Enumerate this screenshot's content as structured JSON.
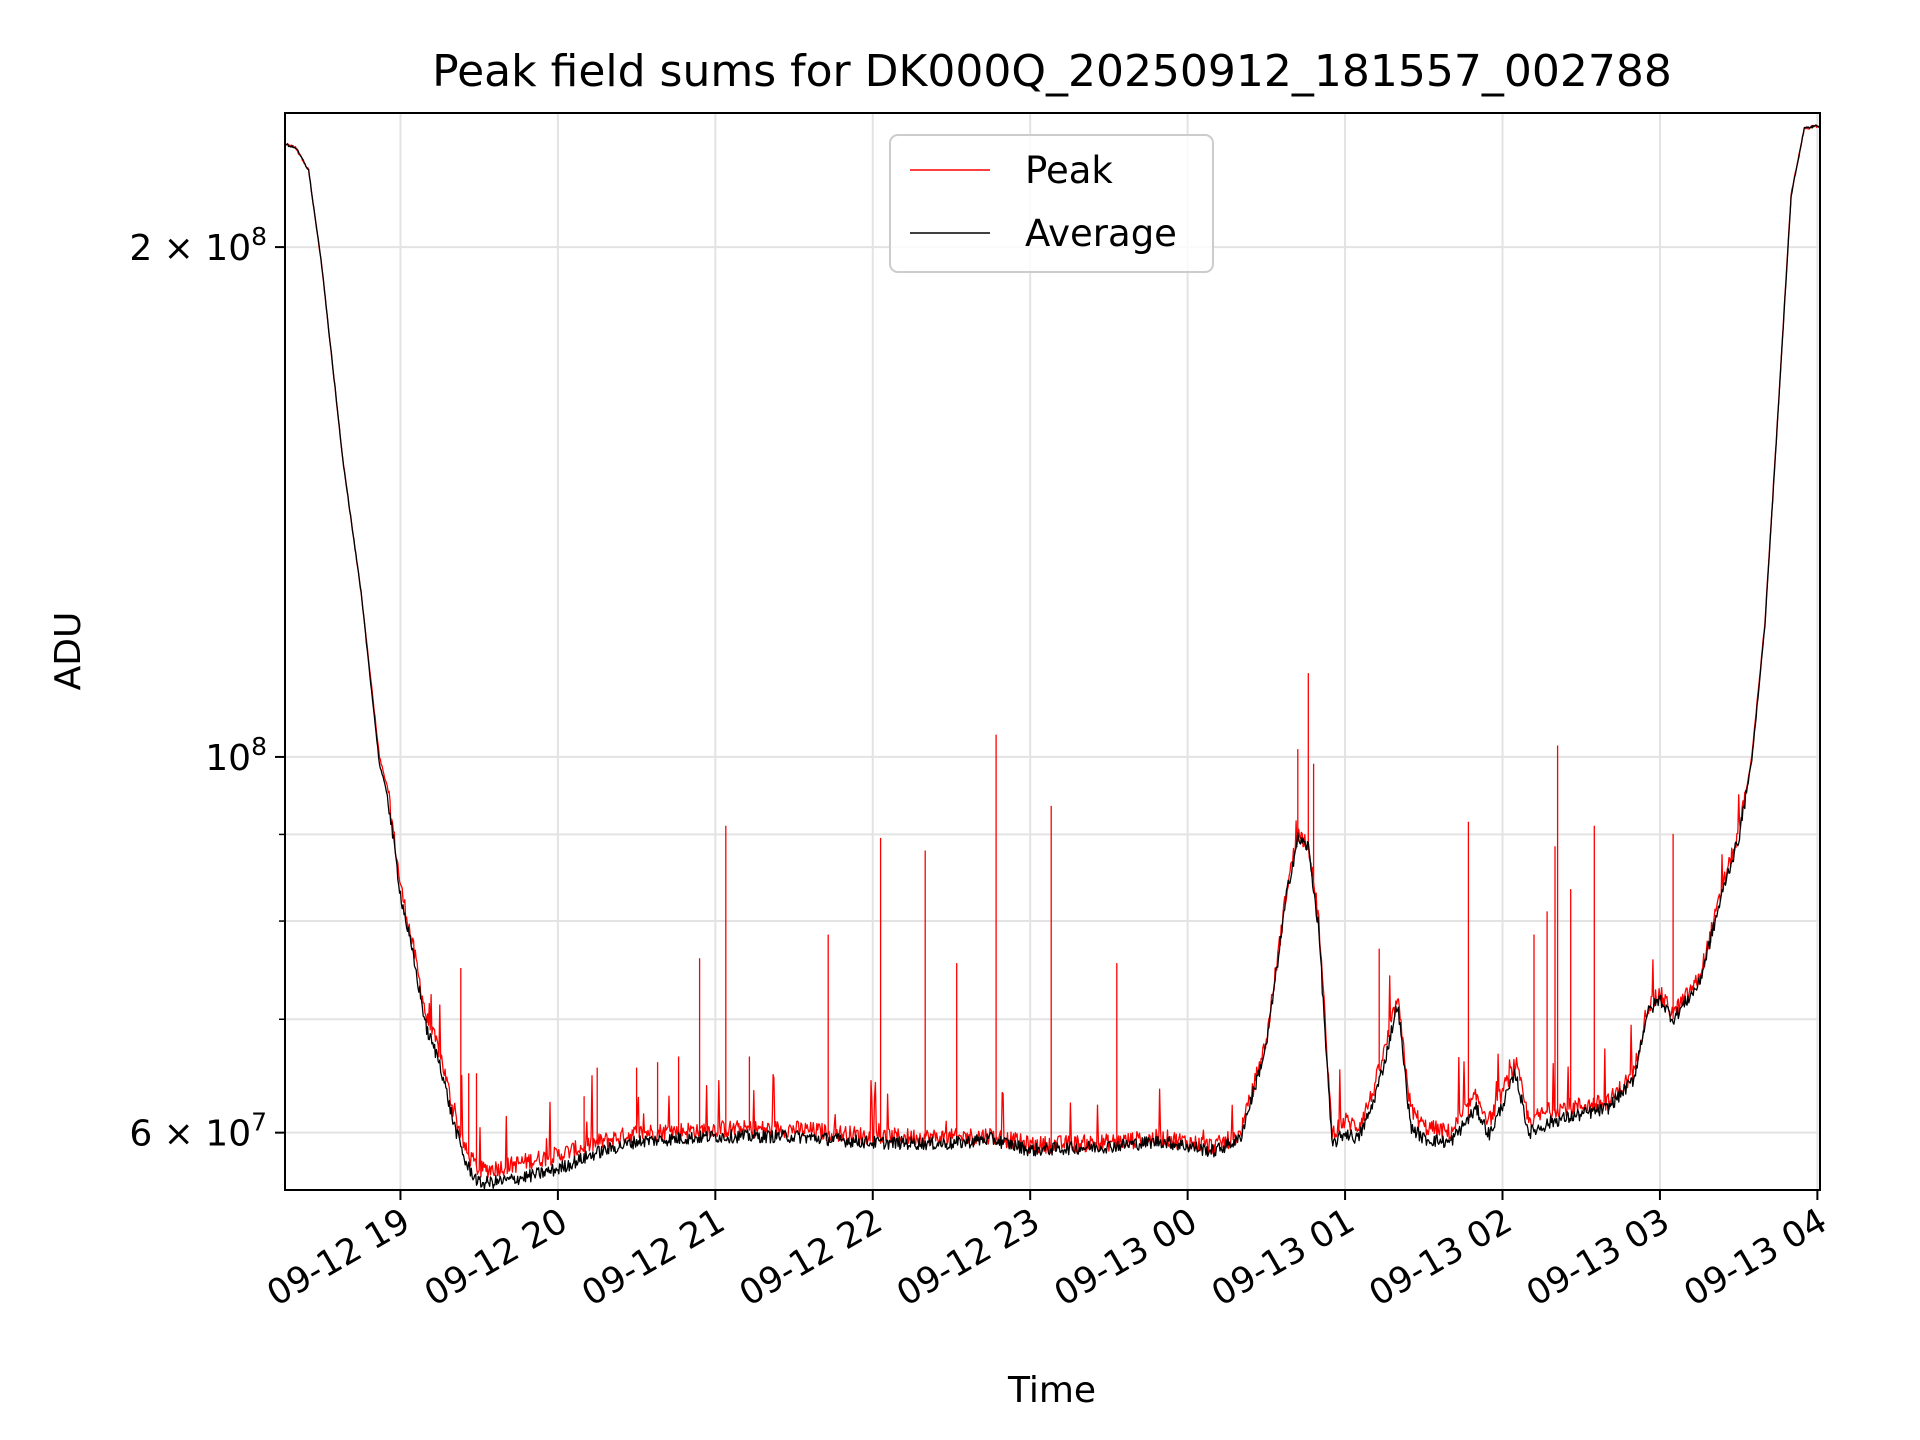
{
  "chart_data": {
    "type": "line",
    "title": "Peak field sums for DK000Q_20250912_181557_002788",
    "xlabel": "Time",
    "ylabel": "ADU",
    "yscale": "log",
    "xlim": [
      "2025-09-12 18:16",
      "2025-09-13 04:01"
    ],
    "ylim": [
      55500000,
      240000000
    ],
    "grid": true,
    "legend_position": "top-center",
    "x_ticks": [
      "09-12 19",
      "09-12 20",
      "09-12 21",
      "09-12 22",
      "09-12 23",
      "09-13 00",
      "09-13 01",
      "09-13 02",
      "09-13 03",
      "09-13 04"
    ],
    "y_tick_labels": [
      {
        "value": 200000000,
        "mantissa": "2",
        "exponent": "8"
      },
      {
        "value": 100000000,
        "mantissa": "",
        "exponent": "8"
      },
      {
        "value": 60000000,
        "mantissa": "6",
        "exponent": "7"
      }
    ],
    "y_minor_grid": [
      70000000,
      80000000,
      90000000
    ],
    "series": [
      {
        "name": "Peak",
        "color": "#ff0000",
        "baseline": [
          [
            "2025-09-12 18:16",
            230000000
          ],
          [
            "2025-09-12 18:20",
            229000000
          ],
          [
            "2025-09-12 18:25",
            222000000
          ],
          [
            "2025-09-12 18:30",
            195000000
          ],
          [
            "2025-09-12 18:38",
            150000000
          ],
          [
            "2025-09-12 18:45",
            125000000
          ],
          [
            "2025-09-12 18:52",
            100000000
          ],
          [
            "2025-09-12 18:55",
            96000000
          ],
          [
            "2025-09-12 19:00",
            84000000
          ],
          [
            "2025-09-12 19:05",
            77000000
          ],
          [
            "2025-09-12 19:10",
            70000000
          ],
          [
            "2025-09-12 19:15",
            67000000
          ],
          [
            "2025-09-12 19:20",
            62000000
          ],
          [
            "2025-09-12 19:25",
            58500000
          ],
          [
            "2025-09-12 19:30",
            57000000
          ],
          [
            "2025-09-12 19:40",
            57300000
          ],
          [
            "2025-09-12 19:50",
            57800000
          ],
          [
            "2025-09-12 20:00",
            58200000
          ],
          [
            "2025-09-12 20:15",
            59200000
          ],
          [
            "2025-09-12 20:30",
            60000000
          ],
          [
            "2025-09-12 21:00",
            60300000
          ],
          [
            "2025-09-12 21:30",
            60300000
          ],
          [
            "2025-09-12 22:00",
            59700000
          ],
          [
            "2025-09-12 22:30",
            59600000
          ],
          [
            "2025-09-12 22:45",
            59800000
          ],
          [
            "2025-09-12 23:00",
            59000000
          ],
          [
            "2025-09-12 23:30",
            59200000
          ],
          [
            "2025-09-12 23:50",
            59600000
          ],
          [
            "2025-09-13 00:10",
            58900000
          ],
          [
            "2025-09-13 00:20",
            59800000
          ],
          [
            "2025-09-13 00:30",
            68000000
          ],
          [
            "2025-09-13 00:38",
            84000000
          ],
          [
            "2025-09-13 00:42",
            90000000
          ],
          [
            "2025-09-13 00:46",
            89000000
          ],
          [
            "2025-09-13 00:50",
            80000000
          ],
          [
            "2025-09-13 00:55",
            60000000
          ],
          [
            "2025-09-13 01:00",
            61000000
          ],
          [
            "2025-09-13 01:05",
            60500000
          ],
          [
            "2025-09-13 01:10",
            63000000
          ],
          [
            "2025-09-13 01:15",
            67000000
          ],
          [
            "2025-09-13 01:20",
            72000000
          ],
          [
            "2025-09-13 01:25",
            62000000
          ],
          [
            "2025-09-13 01:30",
            60500000
          ],
          [
            "2025-09-13 01:40",
            60000000
          ],
          [
            "2025-09-13 01:50",
            63000000
          ],
          [
            "2025-09-13 01:55",
            61000000
          ],
          [
            "2025-09-13 02:05",
            66000000
          ],
          [
            "2025-09-13 02:10",
            61000000
          ],
          [
            "2025-09-13 02:20",
            62000000
          ],
          [
            "2025-09-13 02:40",
            62500000
          ],
          [
            "2025-09-13 02:50",
            65000000
          ],
          [
            "2025-09-13 02:55",
            71000000
          ],
          [
            "2025-09-13 03:00",
            72500000
          ],
          [
            "2025-09-13 03:05",
            70500000
          ],
          [
            "2025-09-13 03:15",
            74000000
          ],
          [
            "2025-09-13 03:25",
            85000000
          ],
          [
            "2025-09-13 03:30",
            90000000
          ],
          [
            "2025-09-13 03:35",
            100000000
          ],
          [
            "2025-09-13 03:40",
            120000000
          ],
          [
            "2025-09-13 03:45",
            160000000
          ],
          [
            "2025-09-13 03:50",
            215000000
          ],
          [
            "2025-09-13 03:55",
            235000000
          ],
          [
            "2025-09-13 04:01",
            236000000
          ]
        ],
        "spikes": [
          [
            "2025-09-12 19:23",
            75000000
          ],
          [
            "2025-09-12 19:26",
            65000000
          ],
          [
            "2025-09-12 19:29",
            65000000
          ],
          [
            "2025-09-12 20:10",
            63000000
          ],
          [
            "2025-09-12 20:15",
            65500000
          ],
          [
            "2025-09-12 20:30",
            65500000
          ],
          [
            "2025-09-12 20:38",
            66000000
          ],
          [
            "2025-09-12 20:46",
            66500000
          ],
          [
            "2025-09-12 20:54",
            76000000
          ],
          [
            "2025-09-12 21:04",
            91000000
          ],
          [
            "2025-09-12 21:13",
            66500000
          ],
          [
            "2025-09-12 21:43",
            78500000
          ],
          [
            "2025-09-12 22:03",
            89500000
          ],
          [
            "2025-09-12 22:20",
            88000000
          ],
          [
            "2025-09-12 22:32",
            75500000
          ],
          [
            "2025-09-12 22:47",
            103000000
          ],
          [
            "2025-09-12 23:08",
            93500000
          ],
          [
            "2025-09-12 23:33",
            75500000
          ],
          [
            "2025-09-13 00:42",
            101000000
          ],
          [
            "2025-09-13 00:46",
            112000000
          ],
          [
            "2025-09-13 00:48",
            99000000
          ],
          [
            "2025-09-13 01:13",
            77000000
          ],
          [
            "2025-09-13 01:47",
            91500000
          ],
          [
            "2025-09-13 02:12",
            78500000
          ],
          [
            "2025-09-13 02:17",
            81000000
          ],
          [
            "2025-09-13 02:20",
            88500000
          ],
          [
            "2025-09-13 02:21",
            101500000
          ],
          [
            "2025-09-13 02:26",
            83500000
          ],
          [
            "2025-09-13 02:35",
            91000000
          ],
          [
            "2025-09-13 03:05",
            90000000
          ]
        ]
      },
      {
        "name": "Average",
        "color": "#000000",
        "baseline": [
          [
            "2025-09-12 18:16",
            230000000
          ],
          [
            "2025-09-12 18:20",
            229000000
          ],
          [
            "2025-09-12 18:25",
            222000000
          ],
          [
            "2025-09-12 18:30",
            195000000
          ],
          [
            "2025-09-12 18:38",
            150000000
          ],
          [
            "2025-09-12 18:45",
            125000000
          ],
          [
            "2025-09-12 18:52",
            99000000
          ],
          [
            "2025-09-12 18:55",
            95000000
          ],
          [
            "2025-09-12 19:00",
            83000000
          ],
          [
            "2025-09-12 19:05",
            76000000
          ],
          [
            "2025-09-12 19:10",
            69000000
          ],
          [
            "2025-09-12 19:15",
            66000000
          ],
          [
            "2025-09-12 19:20",
            61000000
          ],
          [
            "2025-09-12 19:25",
            57500000
          ],
          [
            "2025-09-12 19:30",
            56000000
          ],
          [
            "2025-09-12 19:40",
            56200000
          ],
          [
            "2025-09-12 19:50",
            56600000
          ],
          [
            "2025-09-12 20:00",
            57100000
          ],
          [
            "2025-09-12 20:15",
            58400000
          ],
          [
            "2025-09-12 20:30",
            59300000
          ],
          [
            "2025-09-12 21:00",
            59700000
          ],
          [
            "2025-09-12 21:30",
            59700000
          ],
          [
            "2025-09-12 22:00",
            59200000
          ],
          [
            "2025-09-12 22:30",
            59100000
          ],
          [
            "2025-09-12 22:45",
            59500000
          ],
          [
            "2025-09-12 23:00",
            58600000
          ],
          [
            "2025-09-12 23:30",
            58900000
          ],
          [
            "2025-09-12 23:50",
            59300000
          ],
          [
            "2025-09-13 00:10",
            58500000
          ],
          [
            "2025-09-13 00:20",
            59500000
          ],
          [
            "2025-09-13 00:30",
            67500000
          ],
          [
            "2025-09-13 00:38",
            83500000
          ],
          [
            "2025-09-13 00:42",
            89500000
          ],
          [
            "2025-09-13 00:46",
            88500000
          ],
          [
            "2025-09-13 00:50",
            79000000
          ],
          [
            "2025-09-13 00:55",
            59000000
          ],
          [
            "2025-09-13 01:00",
            60000000
          ],
          [
            "2025-09-13 01:05",
            59500000
          ],
          [
            "2025-09-13 01:10",
            62000000
          ],
          [
            "2025-09-13 01:15",
            66000000
          ],
          [
            "2025-09-13 01:20",
            71500000
          ],
          [
            "2025-09-13 01:25",
            60500000
          ],
          [
            "2025-09-13 01:30",
            59500000
          ],
          [
            "2025-09-13 01:40",
            59200000
          ],
          [
            "2025-09-13 01:50",
            62000000
          ],
          [
            "2025-09-13 01:55",
            59800000
          ],
          [
            "2025-09-13 02:05",
            65000000
          ],
          [
            "2025-09-13 02:10",
            60000000
          ],
          [
            "2025-09-13 02:20",
            61000000
          ],
          [
            "2025-09-13 02:40",
            62000000
          ],
          [
            "2025-09-13 02:50",
            64500000
          ],
          [
            "2025-09-13 02:55",
            70500000
          ],
          [
            "2025-09-13 03:00",
            72000000
          ],
          [
            "2025-09-13 03:05",
            70000000
          ],
          [
            "2025-09-13 03:15",
            73500000
          ],
          [
            "2025-09-13 03:25",
            84500000
          ],
          [
            "2025-09-13 03:30",
            89500000
          ],
          [
            "2025-09-13 03:35",
            99500000
          ],
          [
            "2025-09-13 03:40",
            119500000
          ],
          [
            "2025-09-13 03:45",
            159500000
          ],
          [
            "2025-09-13 03:50",
            214500000
          ],
          [
            "2025-09-13 03:55",
            235000000
          ],
          [
            "2025-09-13 04:01",
            236000000
          ]
        ]
      }
    ]
  }
}
